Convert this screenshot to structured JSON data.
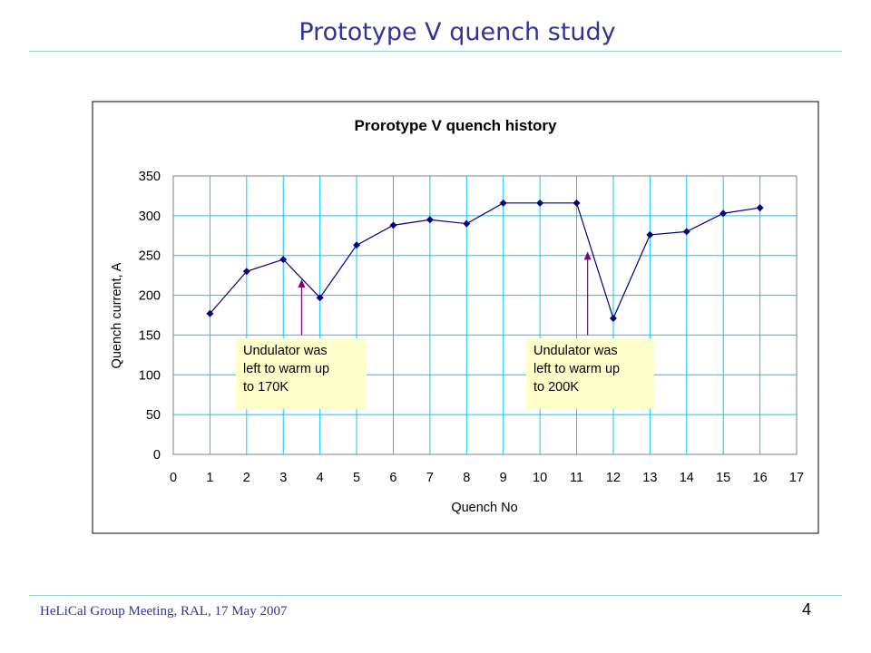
{
  "slide": {
    "title": "Prototype V quench study",
    "footer": "HeLiCal Group Meeting, RAL, 17 May 2007",
    "page_number": "4"
  },
  "colors": {
    "title": "#333399",
    "rule": "#99cccc",
    "line": "#000080",
    "grid": "#00ccff",
    "arrow": "#800080",
    "callout_bg": "#ffffcc"
  },
  "chart_data": {
    "type": "line",
    "title": "Prorotype V quench history",
    "xlabel": "Quench No",
    "ylabel": "Quench current, A",
    "xlim": [
      0,
      17
    ],
    "ylim": [
      0,
      350
    ],
    "x_ticks": [
      0,
      1,
      2,
      3,
      4,
      5,
      6,
      7,
      8,
      9,
      10,
      11,
      12,
      13,
      14,
      15,
      16,
      17
    ],
    "y_ticks": [
      0,
      50,
      100,
      150,
      200,
      250,
      300,
      350
    ],
    "grid": true,
    "legend": "none",
    "series": [
      {
        "x": [
          1,
          2,
          3,
          4,
          5,
          6,
          7,
          8,
          9,
          10,
          11,
          12,
          13,
          14,
          15,
          16
        ],
        "y": [
          177,
          230,
          245,
          197,
          263,
          288,
          295,
          290,
          316,
          316,
          316,
          171,
          276,
          280,
          303,
          310
        ]
      }
    ],
    "annotations": [
      {
        "lines": [
          "Undulator was",
          "left to warm up",
          "to 170K"
        ],
        "arrow_x": 3.5,
        "arrow_y_from": 150,
        "arrow_y_to": 220
      },
      {
        "lines": [
          "Undulator was",
          "left to warm up",
          "to 200K"
        ],
        "arrow_x": 11.3,
        "arrow_y_from": 150,
        "arrow_y_to": 255
      }
    ]
  }
}
